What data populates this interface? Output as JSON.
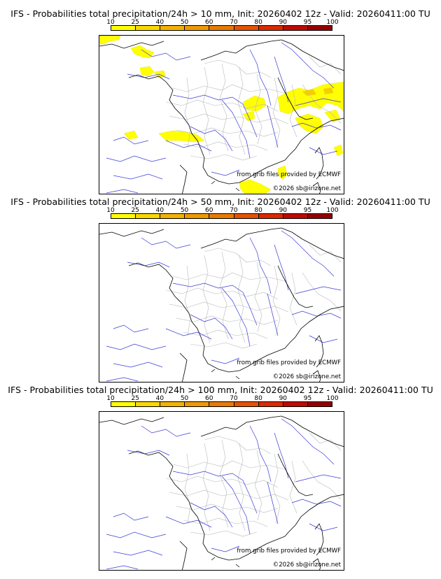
{
  "colorbar": {
    "ticks": [
      "10",
      "25",
      "40",
      "50",
      "60",
      "70",
      "80",
      "90",
      "95",
      "100"
    ],
    "colors": [
      "#ffff00",
      "#f8d800",
      "#f2b200",
      "#ee9a00",
      "#e97a00",
      "#e65300",
      "#dc2a00",
      "#bf0a00",
      "#960000",
      "#5c0000"
    ]
  },
  "panels": [
    {
      "title": "IFS - Probabilities total precipitation/24h > 10 mm, Init: 20260402 12z - Valid: 20260411:00 TU",
      "grib_credit": "from grib files provided by ECMWF",
      "copyright": "©2026 sb@irizone.net",
      "threshold_mm": 10,
      "has_precipitation_areas": true
    },
    {
      "title": "IFS - Probabilities total precipitation/24h > 50 mm, Init: 20260402 12z - Valid: 20260411:00 TU",
      "grib_credit": "from grib files provided by ECMWF",
      "copyright": "©2026 sb@irizone.net",
      "threshold_mm": 50,
      "has_precipitation_areas": false
    },
    {
      "title": "IFS - Probabilities total precipitation/24h > 100 mm, Init: 20260402 12z - Valid: 20260411:00 TU",
      "grib_credit": "from grib files provided by ECMWF",
      "copyright": "©2026 sb@irizone.net",
      "threshold_mm": 100,
      "has_precipitation_areas": false
    }
  ]
}
